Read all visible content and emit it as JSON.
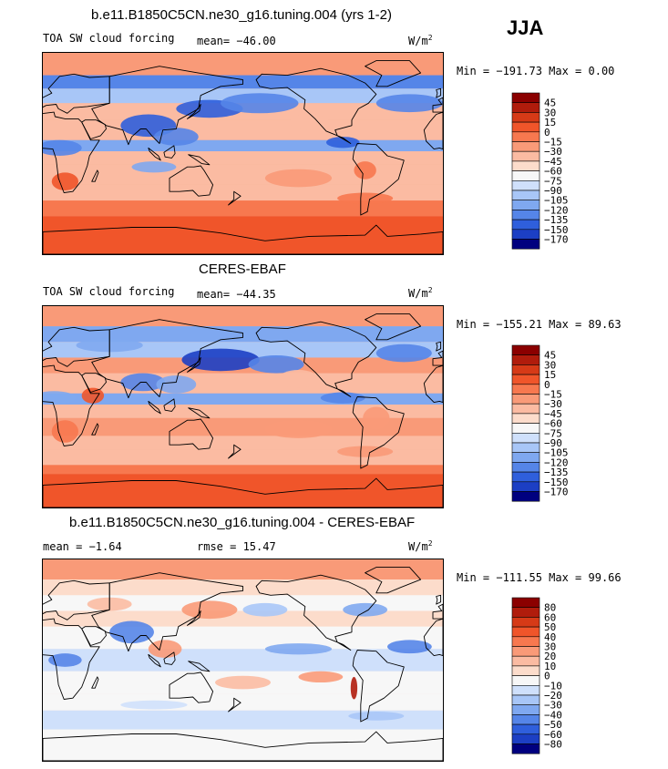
{
  "season": "JJA",
  "panels": [
    {
      "title": "b.e11.B1850C5CN.ne30_g16.tuning.004 (yrs 1-2)",
      "left_label": "TOA SW cloud forcing",
      "stat1": "mean= −46.00",
      "stat2": "",
      "units": "W/m",
      "units_sup": "2",
      "minmax": "Min = −191.73 Max =   0.00",
      "colorbar": {
        "levels": [
          "45",
          "30",
          "15",
          "0",
          "−15",
          "−30",
          "−45",
          "−60",
          "−75",
          "−90",
          "−105",
          "−120",
          "−135",
          "−150",
          "−170"
        ],
        "colors": [
          "#8b0000",
          "#b01c0c",
          "#d63a17",
          "#f0552a",
          "#f7784f",
          "#f99a78",
          "#fbbba2",
          "#fcdccb",
          "#f7f7f7",
          "#cfe0fb",
          "#a8c6f7",
          "#7fa8f0",
          "#5585e8",
          "#2f5fdc",
          "#1c3fc4",
          "#00007f"
        ]
      },
      "field": "model"
    },
    {
      "title": "CERES-EBAF",
      "left_label": "TOA SW cloud forcing",
      "stat1": "mean= −44.35",
      "stat2": "",
      "units": "W/m",
      "units_sup": "2",
      "minmax": "Min = −155.21 Max =  89.63",
      "colorbar": {
        "levels": [
          "45",
          "30",
          "15",
          "0",
          "−15",
          "−30",
          "−45",
          "−60",
          "−75",
          "−90",
          "−105",
          "−120",
          "−135",
          "−150",
          "−170"
        ],
        "colors": [
          "#8b0000",
          "#b01c0c",
          "#d63a17",
          "#f0552a",
          "#f7784f",
          "#f99a78",
          "#fbbba2",
          "#fcdccb",
          "#f7f7f7",
          "#cfe0fb",
          "#a8c6f7",
          "#7fa8f0",
          "#5585e8",
          "#2f5fdc",
          "#1c3fc4",
          "#00007f"
        ]
      },
      "field": "obs"
    },
    {
      "title": "b.e11.B1850C5CN.ne30_g16.tuning.004 - CERES-EBAF",
      "left_label": "mean =   −1.64",
      "stat1": "rmse =   15.47",
      "stat2": "",
      "units": "W/m",
      "units_sup": "2",
      "minmax": "Min = −111.55 Max =  99.66",
      "colorbar": {
        "levels": [
          "80",
          "60",
          "50",
          "40",
          "30",
          "20",
          "10",
          "0",
          "−10",
          "−20",
          "−30",
          "−40",
          "−50",
          "−60",
          "−80"
        ],
        "colors": [
          "#8b0000",
          "#b01c0c",
          "#d63a17",
          "#f0552a",
          "#f7784f",
          "#f99a78",
          "#fbbba2",
          "#fcdccb",
          "#f7f7f7",
          "#cfe0fb",
          "#a8c6f7",
          "#7fa8f0",
          "#5585e8",
          "#2f5fdc",
          "#1c3fc4",
          "#00007f"
        ]
      },
      "field": "diff"
    }
  ],
  "chart_data": {
    "type": "heatmap",
    "title": "JJA",
    "panels": [
      {
        "title": "b.e11.B1850C5CN.ne30_g16.tuning.004 (yrs 1-2)",
        "variable": "TOA SW cloud forcing",
        "units": "W/m2",
        "mean": -46.0,
        "min": -191.73,
        "max": 0.0,
        "contour_levels": [
          45,
          30,
          15,
          0,
          -15,
          -30,
          -45,
          -60,
          -75,
          -90,
          -105,
          -120,
          -135,
          -150,
          -170
        ]
      },
      {
        "title": "CERES-EBAF",
        "variable": "TOA SW cloud forcing",
        "units": "W/m2",
        "mean": -44.35,
        "min": -155.21,
        "max": 89.63,
        "contour_levels": [
          45,
          30,
          15,
          0,
          -15,
          -30,
          -45,
          -60,
          -75,
          -90,
          -105,
          -120,
          -135,
          -150,
          -170
        ]
      },
      {
        "title": "b.e11.B1850C5CN.ne30_g16.tuning.004 - CERES-EBAF",
        "units": "W/m2",
        "mean": -1.64,
        "rmse": 15.47,
        "min": -111.55,
        "max": 99.66,
        "contour_levels": [
          80,
          60,
          50,
          40,
          30,
          20,
          10,
          0,
          -10,
          -20,
          -30,
          -40,
          -50,
          -60,
          -80
        ]
      }
    ]
  }
}
